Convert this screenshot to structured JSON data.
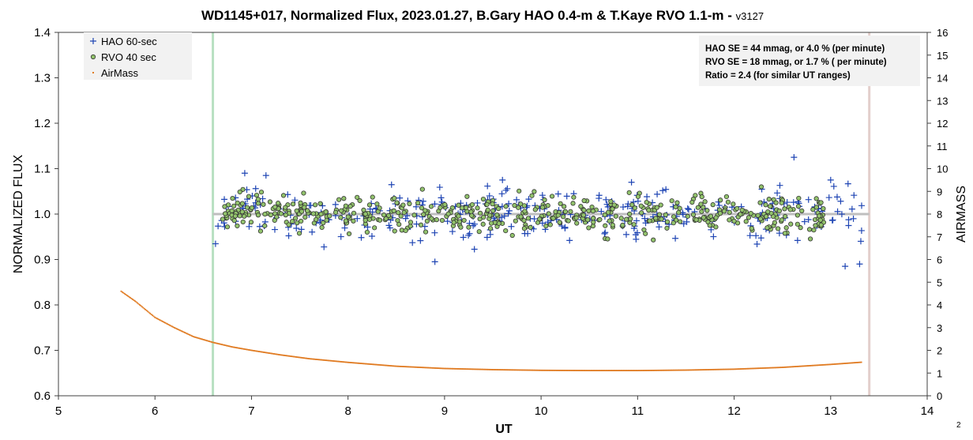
{
  "chart_data": {
    "type": "scatter",
    "title": "WD1145+017, Normalized Flux, 2023.01.27, B.Gary HAO 0.4-m & T.Kaye RVO 1.1-m - ",
    "title_version": "v3127",
    "xlabel": "UT",
    "ylabel": "NORMALIZED FLUX",
    "y2label": "AIRMASS",
    "xlim": [
      5,
      14
    ],
    "ylim": [
      0.6,
      1.4
    ],
    "y2lim": [
      0,
      16
    ],
    "xticks": [
      "5",
      "6",
      "7",
      "8",
      "9",
      "10",
      "11",
      "12",
      "13",
      "14"
    ],
    "yticks": [
      "0.6",
      "0.7",
      "0.8",
      "0.9",
      "1.0",
      "1.1",
      "1.2",
      "1.3",
      "1.4"
    ],
    "y2ticks": [
      "0",
      "1",
      "2",
      "3",
      "4",
      "5",
      "6",
      "7",
      "8",
      "9",
      "10",
      "11",
      "12",
      "13",
      "14",
      "15",
      "16"
    ],
    "grid": false,
    "legend_position": "top-left",
    "vertical_lines": [
      {
        "x": 6.6,
        "color": "#b8e0c2"
      },
      {
        "x": 13.4,
        "color": "#e3cfcc"
      }
    ],
    "reference_line": {
      "y": 1.0,
      "x_range": [
        6.6,
        13.4
      ],
      "color": "#bfbfbf"
    },
    "series": [
      {
        "name": "HAO 60-sec",
        "marker": "plus",
        "color": "#1f45b4",
        "x_range": [
          6.62,
          13.33
        ],
        "count": 330,
        "mean": 1.0,
        "scatter": 0.04,
        "highlights": [
          [
            6.93,
            1.09
          ],
          [
            7.15,
            1.085
          ],
          [
            12.62,
            1.125
          ],
          [
            13.0,
            1.075
          ],
          [
            13.15,
            0.885
          ],
          [
            13.3,
            0.89
          ],
          [
            8.9,
            0.895
          ],
          [
            9.6,
            1.075
          ]
        ]
      },
      {
        "name": "RVO 40 sec",
        "marker": "circle",
        "color": "#92c36c",
        "edge_color": "#333333",
        "x_range": [
          6.7,
          12.95
        ],
        "count": 560,
        "mean": 1.0,
        "scatter": 0.017
      },
      {
        "name": "AirMass",
        "marker": "dot",
        "color": "#e07b22",
        "x": [
          5.65,
          5.8,
          6.0,
          6.2,
          6.4,
          6.6,
          6.8,
          7.0,
          7.3,
          7.6,
          8.0,
          8.5,
          9.0,
          9.5,
          10.0,
          10.5,
          11.0,
          11.5,
          12.0,
          12.5,
          13.0,
          13.33
        ],
        "airmass": [
          4.6,
          4.15,
          3.45,
          3.0,
          2.6,
          2.35,
          2.15,
          2.0,
          1.8,
          1.63,
          1.47,
          1.3,
          1.2,
          1.15,
          1.12,
          1.11,
          1.11,
          1.13,
          1.17,
          1.25,
          1.38,
          1.48
        ]
      }
    ],
    "annotation": [
      "HAO SE =  44 mmag, or 4.0 % (per minute)",
      "RVO SE =  18 mmag, or 1.7 % ( per minute)",
      "Ratio = 2.4 (for similar UT ranges)"
    ],
    "corner_label": "2"
  }
}
